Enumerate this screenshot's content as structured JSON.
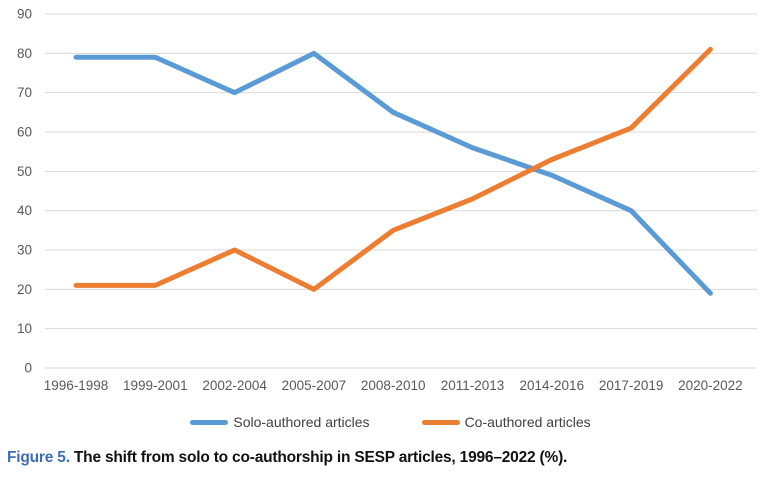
{
  "chart_data": {
    "type": "line",
    "title": "",
    "xlabel": "",
    "ylabel": "",
    "categories": [
      "1996-1998",
      "1999-2001",
      "2002-2004",
      "2005-2007",
      "2008-2010",
      "2011-2013",
      "2014-2016",
      "2017-2019",
      "2020-2022"
    ],
    "series": [
      {
        "name": "Solo-authored articles",
        "color": "#5B9BD5",
        "values": [
          79,
          79,
          70,
          80,
          65,
          56,
          49,
          40,
          19
        ]
      },
      {
        "name": "Co-authored articles",
        "color": "#ED7D31",
        "values": [
          21,
          21,
          30,
          20,
          35,
          43,
          53,
          61,
          81
        ]
      }
    ],
    "ylim": [
      0,
      90
    ],
    "ytick_step": 10,
    "yticks": [
      0,
      10,
      20,
      30,
      40,
      50,
      60,
      70,
      80,
      90
    ],
    "grid": true,
    "legend_position": "bottom"
  },
  "colors": {
    "solo_line": "#5B9BD5",
    "co_line": "#ED7D31",
    "gridline": "#D9D9D9",
    "axis_label": "#595959",
    "legend_text": "#404040",
    "caption_label": "#3F6EB5",
    "caption_text": "#111111"
  },
  "caption": {
    "label": "Figure 5.",
    "text": " The shift from solo to co-authorship in SESP articles, 1996–2022 (%)."
  }
}
